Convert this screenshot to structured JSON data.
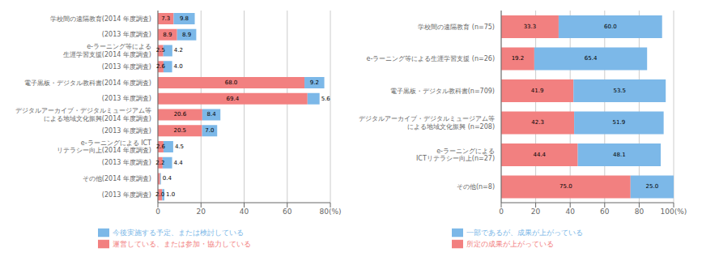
{
  "chart_data": [
    {
      "type": "bar",
      "orientation": "horizontal",
      "stacked": true,
      "data_labels": true,
      "grid": true,
      "legend": "bottom",
      "categories": [
        "学校間の遠隔教育(2014 年度調査)",
        "(2013 年度調査)",
        "e-ラーニング等による\n生涯学習支援(2014 年度調査)",
        "(2013 年度調査)",
        "電子黒板・デジタル教科書(2014 年度調査)",
        "(2013 年度調査)",
        "デジタルアーカイブ・デジタルミュージアム等\nによる地域文化振興(2014 年度調査)",
        "(2013 年度調査)",
        "e-ラーニングによる ICT\nリテラシー向上(2014 年度調査)",
        "(2013 年度調査)",
        "その他(2014 年度調査)",
        "(2013 年度調査)"
      ],
      "series": [
        {
          "name": "運営している、または参加・協力している",
          "color": "#F28080",
          "values": [
            7.3,
            8.9,
            2.5,
            2.6,
            68.0,
            69.4,
            20.6,
            20.5,
            2.6,
            2.2,
            1.0,
            2.0
          ],
          "value_labels": [
            "7.3",
            "8.9",
            "2.5",
            "2.6",
            "68.0",
            "69.4",
            "20.6",
            "20.5",
            "2.6",
            "2.2",
            null,
            "2.0"
          ]
        },
        {
          "name": "今後実施する予定、または検討している",
          "color": "#7CB8E8",
          "values": [
            9.8,
            8.9,
            4.2,
            4.0,
            9.2,
            5.6,
            8.4,
            7.0,
            4.5,
            4.4,
            0.4,
            1.0
          ],
          "value_labels": [
            "9.8",
            "8.9",
            "4.2",
            "4.0",
            "9.2",
            "5.6",
            "8.4",
            "7.0",
            "4.5",
            "4.4",
            "0.4",
            "1.0"
          ]
        }
      ],
      "xlim": [
        0,
        80
      ],
      "xticks": [
        0,
        20,
        40,
        60,
        {
          "value": 80,
          "label": "80(%)"
        }
      ]
    },
    {
      "type": "bar",
      "orientation": "horizontal",
      "stacked": true,
      "data_labels": true,
      "grid": true,
      "legend": "bottom",
      "categories": [
        "学校間の遠隔教育 (n=75)",
        "e-ラーニング等による生涯学習支援 (n=26)",
        "電子黒板・デジタル教科書(n=709)",
        "デジタルアーカイブ・デジタルミュージアム等\nによる地域文化振興 (n=208)",
        "e-ラーニングによる\nICTリテラシー向上(n=27)",
        "その他(n=8)"
      ],
      "series": [
        {
          "name": "所定の成果が上がっている",
          "color": "#F28080",
          "values": [
            33.3,
            19.2,
            41.9,
            42.3,
            44.4,
            75.0
          ],
          "value_labels": [
            "33.3",
            "19.2",
            "41.9",
            "42.3",
            "44.4",
            "75.0"
          ]
        },
        {
          "name": "一部であるが、成果が上がっている",
          "color": "#7CB8E8",
          "values": [
            60.0,
            65.4,
            53.5,
            51.9,
            48.1,
            25.0
          ],
          "value_labels": [
            "60.0",
            "65.4",
            "53.5",
            "51.9",
            "48.1",
            "25.0"
          ]
        }
      ],
      "xlim": [
        0,
        100
      ],
      "xticks": [
        0,
        20,
        40,
        60,
        80,
        {
          "value": 100,
          "label": "100(%)"
        }
      ]
    }
  ]
}
